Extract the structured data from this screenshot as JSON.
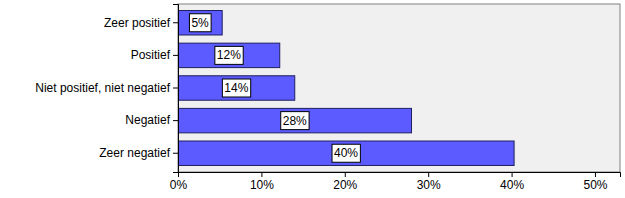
{
  "chart_data": {
    "type": "bar",
    "orientation": "horizontal",
    "categories": [
      "Zeer positief",
      "Positief",
      "Niet positief, niet negatief",
      "Negatief",
      "Zeer negatief"
    ],
    "values": [
      5.3,
      12.2,
      14.0,
      28.0,
      40.3
    ],
    "value_labels": [
      "5%",
      "12%",
      "14%",
      "28%",
      "40%"
    ],
    "data_labels": true,
    "color": "#5b5bff",
    "grid": false,
    "xlim": [
      0,
      53
    ],
    "xticks": [
      {
        "value": 0,
        "label": "0%"
      },
      {
        "value": 10,
        "label": "10%"
      },
      {
        "value": 20,
        "label": "20%"
      },
      {
        "value": 30,
        "label": "30%"
      },
      {
        "value": 40,
        "label": "40%"
      },
      {
        "value": 50,
        "label": "50%"
      }
    ]
  }
}
